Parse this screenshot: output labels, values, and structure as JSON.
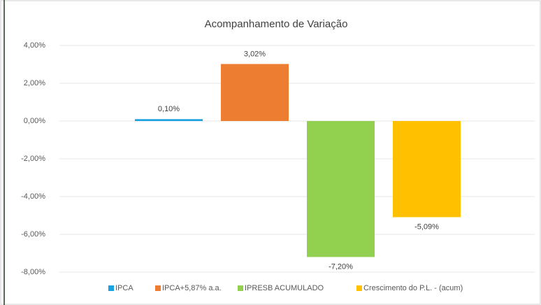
{
  "chart_data": {
    "type": "bar",
    "title": "Acompanhamento de Variação",
    "series": [
      {
        "name": "IPCA",
        "color": "#1ba1e2",
        "values": [
          0.1
        ],
        "value_labels": [
          "0,10%"
        ]
      },
      {
        "name": "IPCA+5,87% a.a.",
        "color": "#ed7d31",
        "values": [
          3.02
        ],
        "value_labels": [
          "3,02%"
        ]
      },
      {
        "name": "IPRESB ACUMULADO",
        "color": "#92d050",
        "values": [
          -7.2
        ],
        "value_labels": [
          "-7,20%"
        ]
      },
      {
        "name": "Crescimento do P.L. - (acum)",
        "color": "#ffc000",
        "values": [
          -5.09
        ],
        "value_labels": [
          "-5,09%"
        ]
      }
    ],
    "ylim": [
      -8,
      4
    ],
    "yticks": [
      {
        "value": -8,
        "label": "-8,00%"
      },
      {
        "value": -6,
        "label": "-6,00%"
      },
      {
        "value": -4,
        "label": "-4,00%"
      },
      {
        "value": -2,
        "label": "-2,00%"
      },
      {
        "value": 0,
        "label": "0,00%"
      },
      {
        "value": 2,
        "label": "2,00%"
      },
      {
        "value": 4,
        "label": "4,00%"
      }
    ],
    "grid": true,
    "legend": "bottom"
  }
}
